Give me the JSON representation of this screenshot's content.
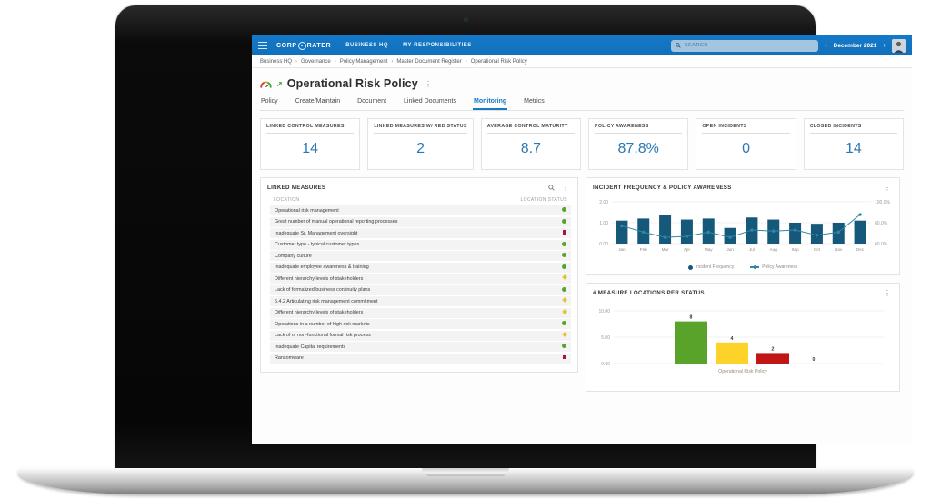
{
  "topbar": {
    "logo_left": "CORP",
    "logo_right": "RATER",
    "nav": [
      "BUSINESS HQ",
      "MY RESPONSIBILITIES"
    ],
    "search_placeholder": "SEARCH",
    "period": "December 2021",
    "prev": "‹",
    "next": "›"
  },
  "breadcrumb": [
    "Business HQ",
    "Governance",
    "Policy Management",
    "Master Document Register",
    "Operational Risk Policy"
  ],
  "page": {
    "title": "Operational Risk Policy",
    "kebab": "⋮"
  },
  "tabs": [
    {
      "label": "Policy",
      "active": false
    },
    {
      "label": "Create/Maintain",
      "active": false
    },
    {
      "label": "Document",
      "active": false
    },
    {
      "label": "Linked Documents",
      "active": false
    },
    {
      "label": "Monitoring",
      "active": true
    },
    {
      "label": "Metrics",
      "active": false
    }
  ],
  "kpis": [
    {
      "label": "LINKED CONTROL MEASURES",
      "value": "14"
    },
    {
      "label": "LINKED MEASURES W/ RED STATUS",
      "value": "2"
    },
    {
      "label": "AVERAGE CONTROL MATURITY",
      "value": "8.7"
    },
    {
      "label": "POLICY AWARENESS",
      "value": "87.8%"
    },
    {
      "label": "OPEN INCIDENTS",
      "value": "0"
    },
    {
      "label": "CLOSED INCIDENTS",
      "value": "14"
    }
  ],
  "linked_measures": {
    "title": "LINKED MEASURES",
    "columns": [
      "LOCATION",
      "LOCATION STATUS"
    ],
    "status_colors": {
      "green": "#59a32b",
      "yellow": "#e3c32b",
      "red": "#a5173a"
    },
    "rows": [
      {
        "location": "Operational risk management",
        "status": "green"
      },
      {
        "location": "Great number of manual operational reporting processes",
        "status": "green"
      },
      {
        "location": "Inadequate Sr. Management oversight",
        "status": "red"
      },
      {
        "location": "Customer type - typical customer types",
        "status": "green"
      },
      {
        "location": "Company culture",
        "status": "green"
      },
      {
        "location": "Inadequate employee awareness & training",
        "status": "green"
      },
      {
        "location": "Different hierarchy levels of stakeholders",
        "status": "yellow"
      },
      {
        "location": "Lack of formalized business continuity plans",
        "status": "green"
      },
      {
        "location": "5.4.2 Articulating risk management commitment",
        "status": "yellow"
      },
      {
        "location": "Different hierarchy levels of stakeholders",
        "status": "yellow"
      },
      {
        "location": "Operations in a number of high risk markets",
        "status": "green"
      },
      {
        "location": "Lack of or non-functional formal risk process",
        "status": "yellow"
      },
      {
        "location": "Inadequate Capital requirements",
        "status": "green"
      },
      {
        "location": "Ransomware",
        "status": "red"
      }
    ]
  },
  "chart_data": [
    {
      "id": "incident_chart",
      "title": "INCIDENT FREQUENCY & POLICY AWARENESS",
      "type": "bar",
      "categories": [
        "Jan",
        "Feb",
        "Mar",
        "Apr",
        "May",
        "Jun",
        "Jul",
        "Aug",
        "Sep",
        "Oct",
        "Nov",
        "Dec"
      ],
      "series": [
        {
          "name": "Incident Frequency",
          "type": "bar",
          "axis": "left",
          "color": "#15587a",
          "values": [
            1.1,
            1.2,
            1.35,
            1.15,
            1.2,
            0.75,
            1.25,
            1.15,
            1.0,
            0.95,
            1.0,
            1.1
          ]
        },
        {
          "name": "Policy Awareness",
          "type": "line",
          "axis": "right",
          "color": "#2f87a8",
          "values": [
            77,
            71,
            66,
            67,
            71,
            66,
            73,
            72,
            73,
            68,
            71,
            87.8
          ]
        }
      ],
      "left_axis": {
        "min": 0,
        "max": 2,
        "ticks": [
          "0.00",
          "1.00",
          "2.00"
        ]
      },
      "right_axis": {
        "min": 60,
        "max": 100,
        "ticks": [
          "60.0%",
          "80.0%",
          "100.0%"
        ]
      },
      "legend_position": "bottom",
      "grid": true,
      "kebab": "⋮"
    },
    {
      "id": "status_chart",
      "title": "# MEASURE LOCATIONS PER STATUS",
      "type": "bar",
      "categories": [
        "green",
        "yellow",
        "red",
        "gray"
      ],
      "values": [
        8,
        4,
        2,
        0
      ],
      "colors": [
        "#59a32b",
        "#fdd329",
        "#c11616",
        "#9e9e9e"
      ],
      "xlabel": "Operational Risk Policy",
      "ylim": [
        0,
        10
      ],
      "y_ticks": [
        "0.00",
        "5.00",
        "10.00"
      ],
      "grid": true,
      "kebab": "⋮"
    }
  ]
}
